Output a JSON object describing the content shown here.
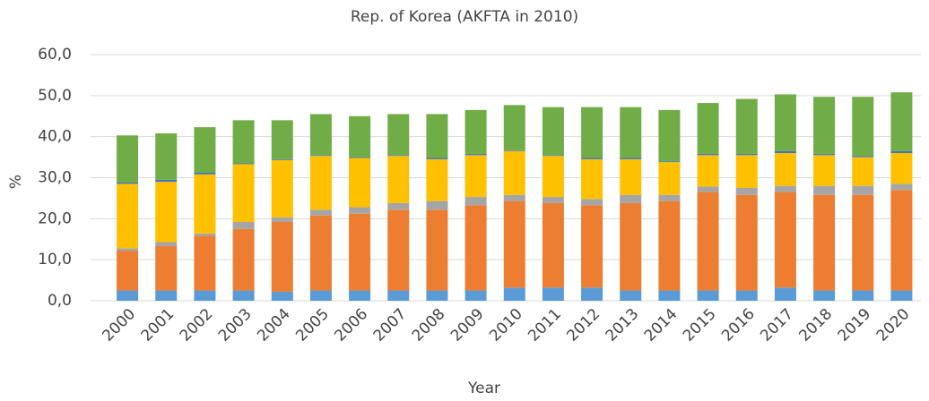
{
  "chart_data": {
    "type": "bar",
    "stacked": true,
    "title": "Rep. of Korea (AKFTA in 2010)",
    "x_label": "Year",
    "y_label": "%",
    "categories": [
      "2000",
      "2001",
      "2002",
      "2003",
      "2004",
      "2005",
      "2006",
      "2007",
      "2008",
      "2009",
      "2010",
      "2011",
      "2012",
      "2013",
      "2014",
      "2015",
      "2016",
      "2017",
      "2018",
      "2019",
      "2020"
    ],
    "series": [
      {
        "color": "#5b9bd5",
        "values": [
          2.5,
          2.5,
          2.5,
          2.5,
          2.2,
          2.5,
          2.5,
          2.5,
          2.5,
          2.5,
          3.2,
          3.2,
          3.2,
          2.5,
          2.5,
          2.5,
          2.5,
          3.2,
          2.5,
          2.5,
          2.5
        ]
      },
      {
        "color": "#ed7d31",
        "values": [
          9.7,
          10.8,
          13.3,
          15.0,
          17.0,
          18.3,
          18.7,
          19.7,
          19.7,
          20.8,
          21.1,
          20.6,
          20.1,
          21.3,
          21.8,
          24.0,
          23.3,
          23.3,
          23.3,
          23.3,
          24.5
        ]
      },
      {
        "color": "#a5a5a5",
        "values": [
          0.6,
          1.0,
          0.6,
          1.7,
          1.1,
          1.4,
          1.6,
          1.6,
          2.1,
          2.0,
          1.5,
          1.5,
          1.5,
          2.0,
          1.5,
          1.3,
          1.7,
          1.5,
          2.2,
          2.2,
          1.5
        ]
      },
      {
        "color": "#ffc000",
        "values": [
          15.7,
          14.7,
          14.4,
          14.1,
          14.0,
          13.1,
          12.0,
          11.5,
          10.2,
          10.2,
          10.7,
          10.0,
          9.7,
          8.7,
          8.0,
          7.7,
          8.0,
          8.0,
          7.5,
          7.0,
          7.5
        ]
      },
      {
        "color": "#4472c4",
        "values": [
          0.3,
          0.5,
          0.4,
          0.2,
          0.2,
          0.2,
          0.2,
          0.2,
          0.3,
          0.3,
          0.2,
          0.2,
          0.3,
          0.3,
          0.2,
          0.3,
          0.3,
          0.5,
          0.3,
          0.3,
          0.5
        ]
      },
      {
        "color": "#70ad47",
        "values": [
          11.5,
          11.3,
          11.1,
          10.5,
          9.5,
          10.0,
          10.0,
          10.0,
          10.7,
          10.7,
          11.0,
          11.7,
          12.4,
          12.4,
          12.5,
          12.4,
          13.4,
          13.8,
          13.9,
          14.4,
          14.3
        ]
      }
    ],
    "ylim": [
      0,
      60
    ],
    "yticks": [
      {
        "value": 0,
        "label": "0,0"
      },
      {
        "value": 10,
        "label": "10,0"
      },
      {
        "value": 20,
        "label": "20,0"
      },
      {
        "value": 30,
        "label": "30,0"
      },
      {
        "value": 40,
        "label": "40,0"
      },
      {
        "value": 50,
        "label": "50,0"
      },
      {
        "value": 60,
        "label": "60,0"
      }
    ],
    "grid": true
  }
}
